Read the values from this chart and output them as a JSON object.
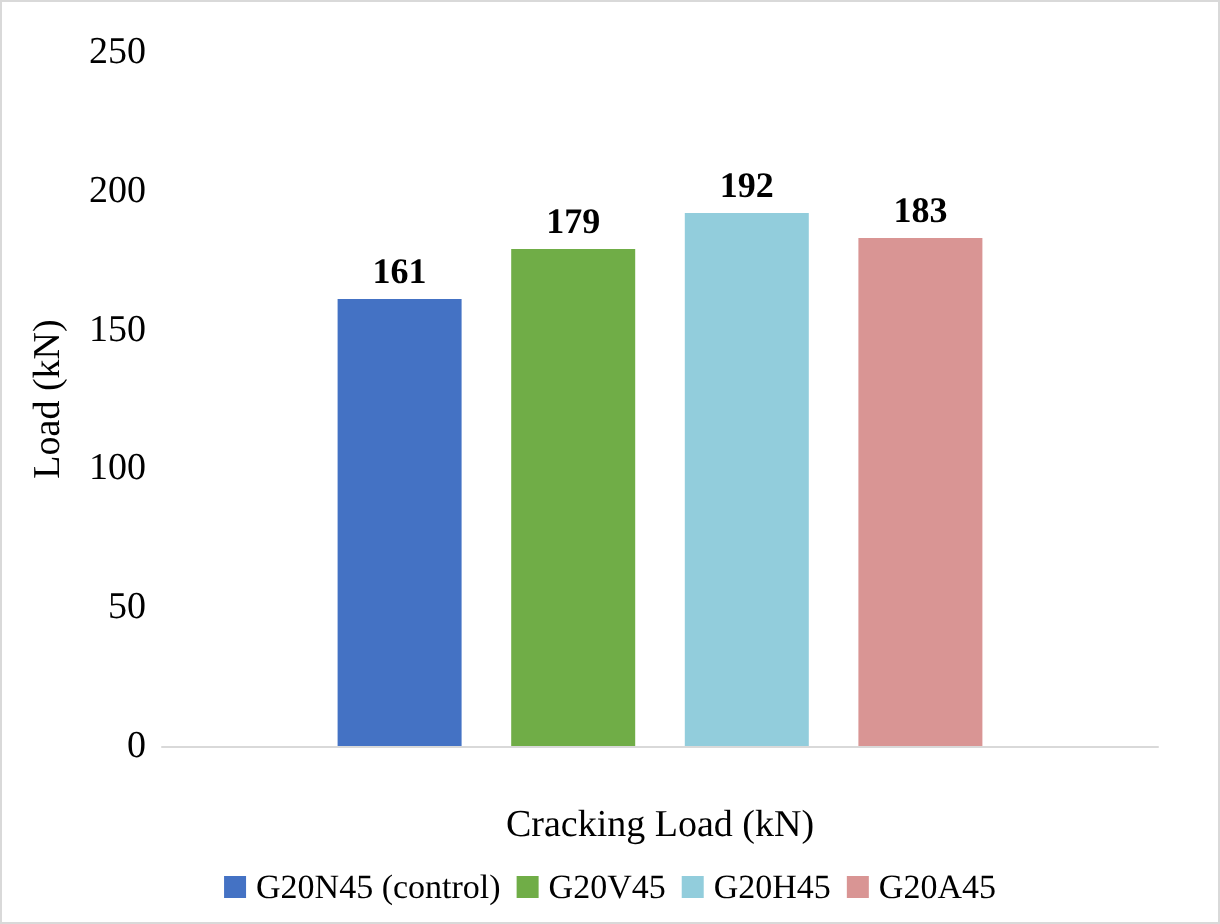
{
  "chart_data": {
    "type": "bar",
    "xlabel": "Cracking Load (kN)",
    "ylabel": "Load (kN)",
    "categories": [
      null
    ],
    "series": [
      {
        "name": "G20N45 (control)",
        "color": "#4472c4",
        "values": [
          161
        ]
      },
      {
        "name": "G20V45",
        "color": "#70ad47",
        "values": [
          179
        ]
      },
      {
        "name": "G20H45",
        "color": "#92cddc",
        "values": [
          192
        ]
      },
      {
        "name": "G20A45",
        "color": "#d99594",
        "values": [
          183
        ]
      }
    ],
    "ylim": [
      0,
      250
    ],
    "yticks": [
      0,
      50,
      100,
      150,
      200,
      250
    ],
    "data_labels": true,
    "legend": "bottom",
    "grid": false
  }
}
